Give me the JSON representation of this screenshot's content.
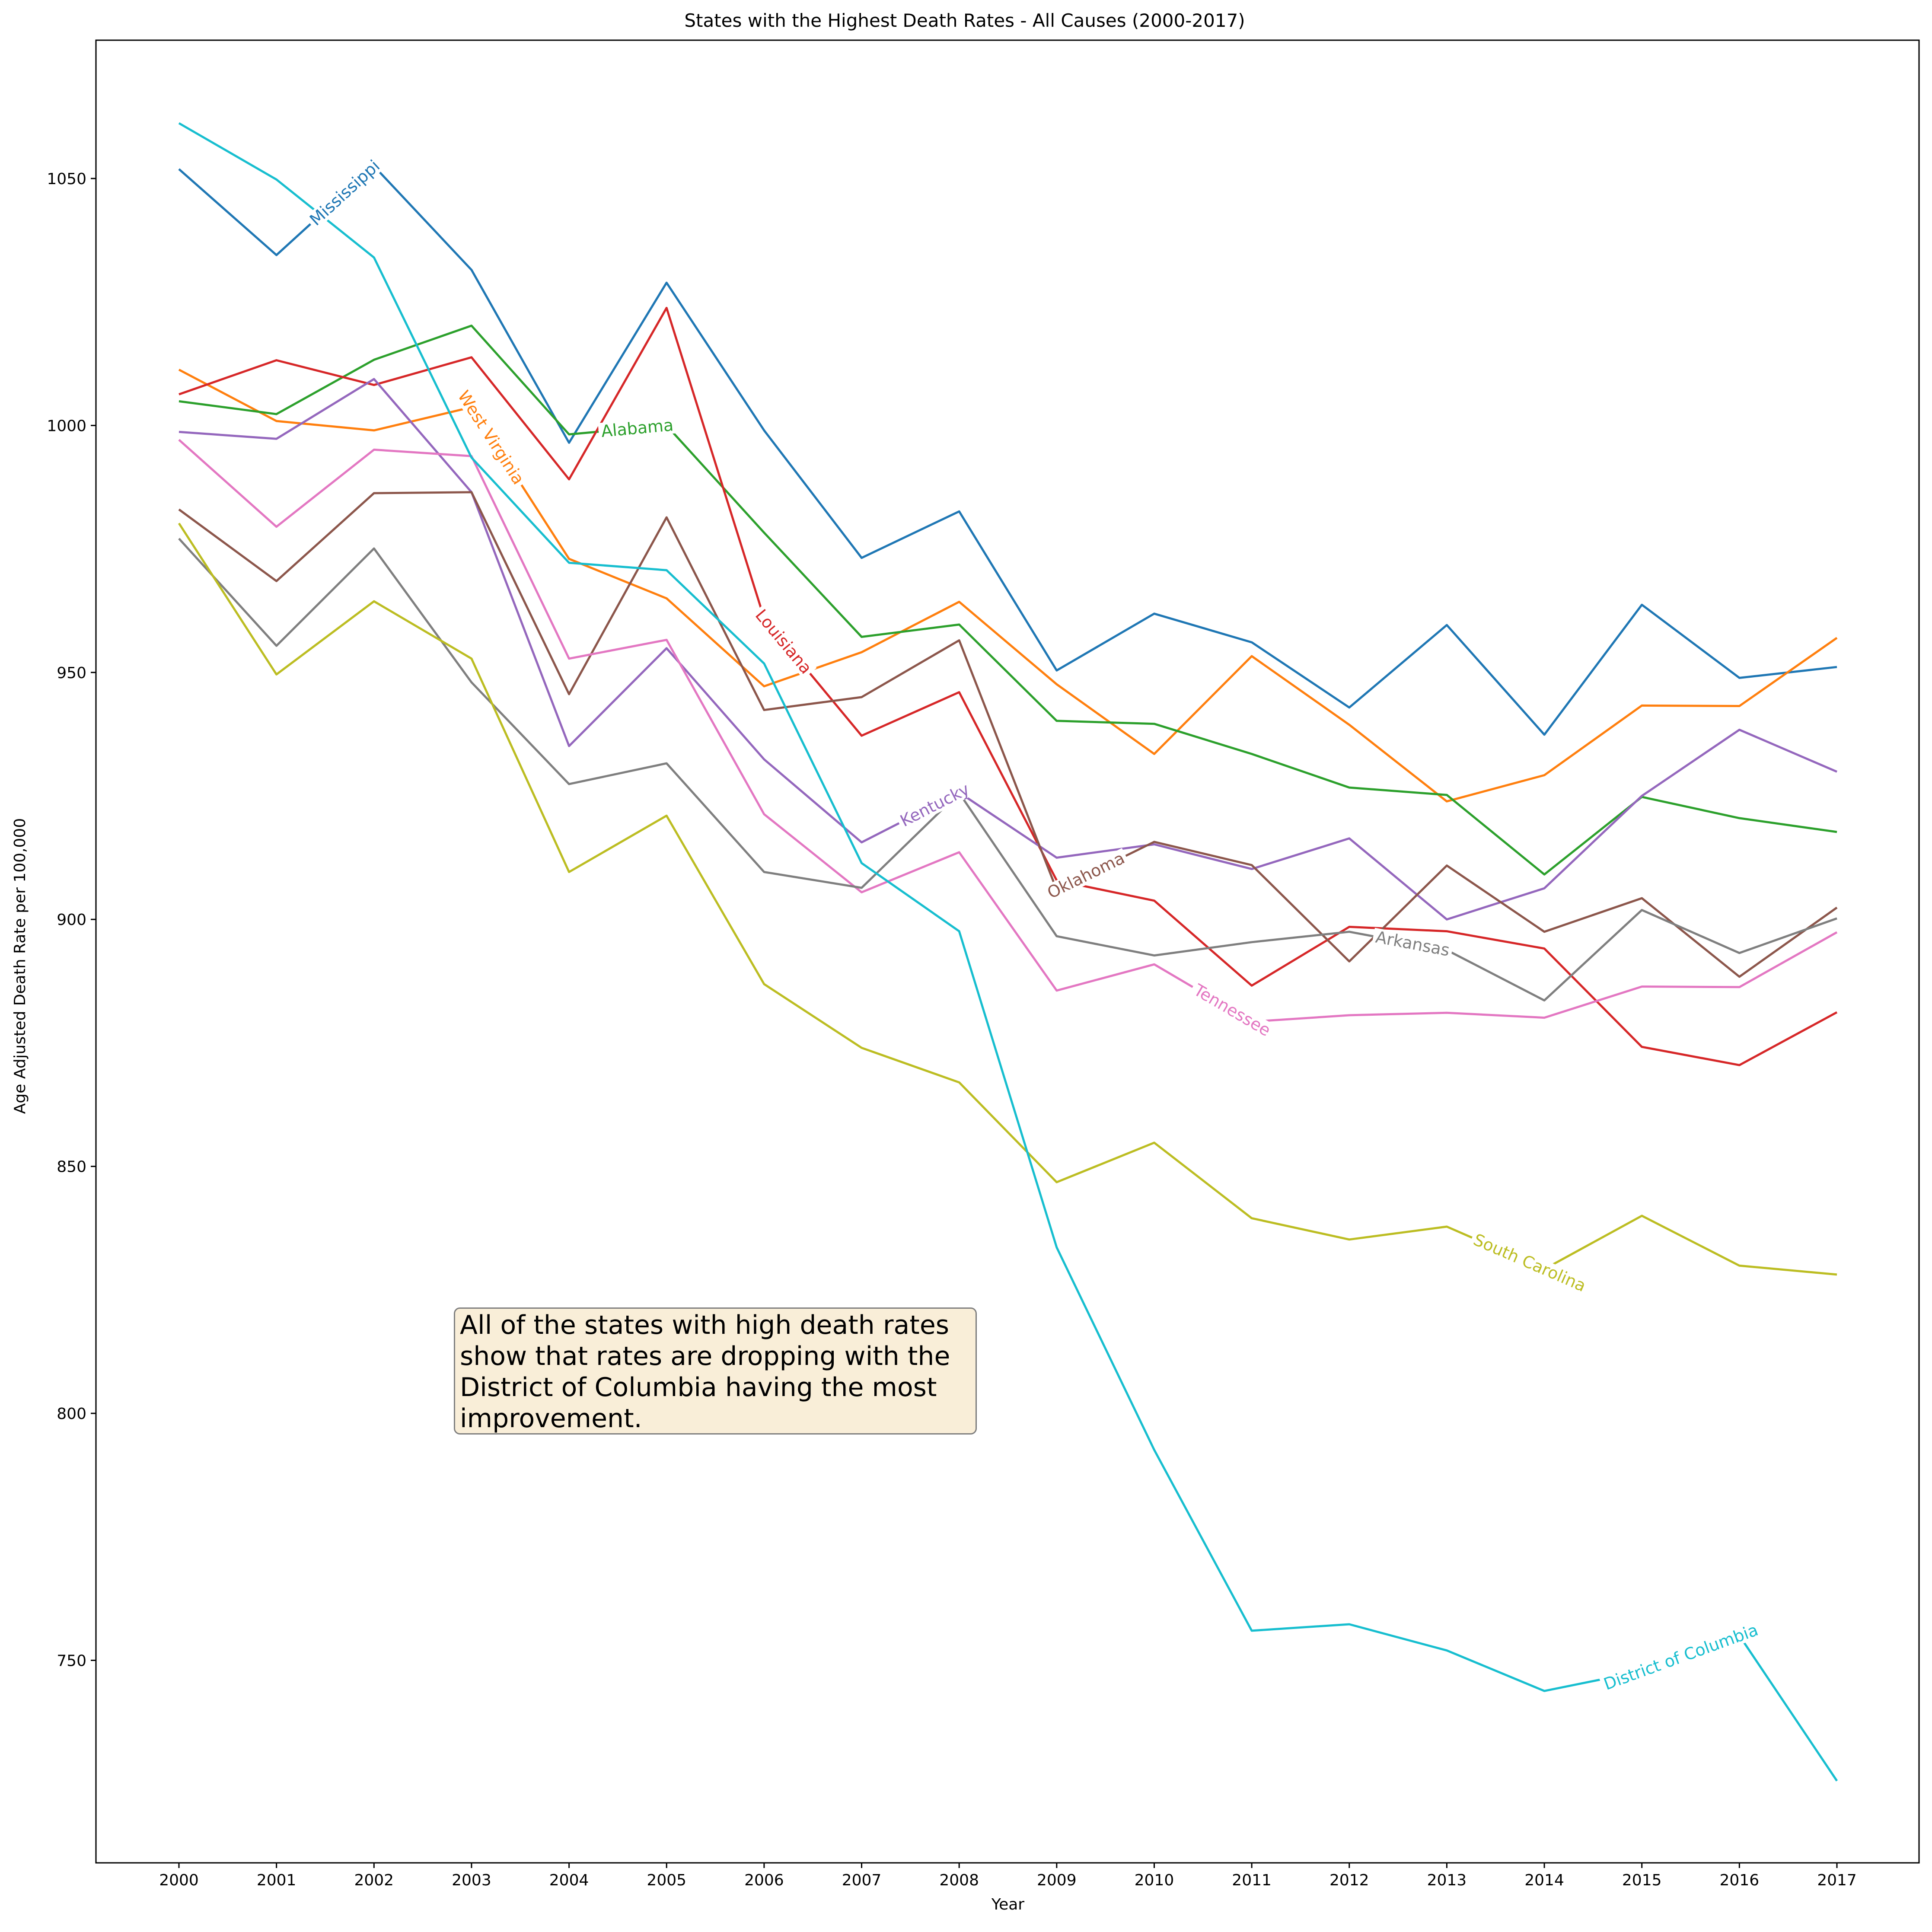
{
  "chart_data": {
    "type": "line",
    "title": "States with the Highest Death Rates - All Causes (2000-2017)",
    "xlabel": "Year",
    "ylabel": "Age Adjusted Death Rate per 100,000",
    "x": [
      2000,
      2001,
      2002,
      2003,
      2004,
      2005,
      2006,
      2007,
      2008,
      2009,
      2010,
      2011,
      2012,
      2013,
      2014,
      2015,
      2016,
      2017
    ],
    "xticks": [
      "2000",
      "2001",
      "2002",
      "2003",
      "2004",
      "2005",
      "2006",
      "2007",
      "2008",
      "2009",
      "2010",
      "2011",
      "2012",
      "2013",
      "2014",
      "2015",
      "2016",
      "2017"
    ],
    "ylim": [
      709,
      1078
    ],
    "yticks": [
      "750",
      "800",
      "850",
      "900",
      "950",
      "1000",
      "1050"
    ],
    "grid": false,
    "series": [
      {
        "name": "Mississippi",
        "color": "#1f77b4",
        "label_year": 2001.7,
        "values": [
          1051.9,
          1034.5,
          1052.5,
          1031.5,
          996.5,
          1028.9,
          999.0,
          973.2,
          982.6,
          950.4,
          961.9,
          956.1,
          942.9,
          959.6,
          937.4,
          963.7,
          948.9,
          951.1
        ]
      },
      {
        "name": "West Virginia",
        "color": "#ff7f0e",
        "label_year": 2003.2,
        "values": [
          1011.3,
          1000.9,
          999.0,
          1003.7,
          973.0,
          965.0,
          947.2,
          954.1,
          964.3,
          947.6,
          933.5,
          953.3,
          939.4,
          923.9,
          929.2,
          943.3,
          943.2,
          957.0
        ]
      },
      {
        "name": "Alabama",
        "color": "#2ca02c",
        "label_year": 2004.7,
        "values": [
          1004.9,
          1002.3,
          1013.3,
          1020.2,
          998.2,
          1000.0,
          978.3,
          957.2,
          959.7,
          940.2,
          939.6,
          933.5,
          926.7,
          925.2,
          909.1,
          924.8,
          920.5,
          917.7
        ]
      },
      {
        "name": "Louisiana",
        "color": "#d62728",
        "label_year": 2006.2,
        "values": [
          1006.3,
          1013.2,
          1008.2,
          1013.8,
          989.1,
          1023.8,
          961.0,
          937.2,
          946.0,
          907.9,
          903.8,
          886.6,
          898.5,
          897.6,
          894.1,
          874.2,
          870.5,
          881.2
        ]
      },
      {
        "name": "Kentucky",
        "color": "#9467bd",
        "label_year": 2007.75,
        "values": [
          998.7,
          997.3,
          1009.4,
          986.5,
          935.1,
          954.9,
          932.4,
          915.6,
          925.7,
          912.5,
          915.2,
          910.2,
          916.4,
          900.0,
          906.3,
          925.0,
          938.4,
          929.9
        ]
      },
      {
        "name": "Oklahoma",
        "color": "#8c564b",
        "label_year": 2009.3,
        "values": [
          983.0,
          968.5,
          986.3,
          986.5,
          945.6,
          981.4,
          942.4,
          945.0,
          956.5,
          906.0,
          915.7,
          911.0,
          891.5,
          910.9,
          897.5,
          904.3,
          888.4,
          902.4
        ]
      },
      {
        "name": "Tennessee",
        "color": "#e377c2",
        "label_year": 2010.8,
        "values": [
          997.1,
          979.5,
          995.1,
          993.8,
          952.8,
          956.6,
          921.3,
          905.5,
          913.6,
          885.6,
          890.9,
          879.3,
          880.6,
          881.1,
          880.1,
          886.4,
          886.3,
          897.4
        ]
      },
      {
        "name": "Arkansas",
        "color": "#7f7f7f",
        "label_year": 2012.65,
        "values": [
          977.1,
          955.4,
          975.1,
          948.0,
          927.4,
          931.6,
          909.6,
          906.4,
          925.6,
          896.6,
          892.7,
          895.4,
          897.5,
          893.8,
          883.6,
          901.9,
          893.2,
          900.2
        ]
      },
      {
        "name": "South Carolina",
        "color": "#bcbd22",
        "label_year": 2013.85,
        "values": [
          980.2,
          949.6,
          964.4,
          952.8,
          909.6,
          921.0,
          886.9,
          874.0,
          867.0,
          846.8,
          854.8,
          839.5,
          835.2,
          837.8,
          829.2,
          840.0,
          829.9,
          828.1
        ]
      },
      {
        "name": "District of Columbia",
        "color": "#17becf",
        "label_year": 2015.4,
        "values": [
          1061.2,
          1049.8,
          1034.0,
          993.5,
          972.2,
          970.7,
          951.8,
          911.4,
          897.6,
          833.6,
          792.6,
          756.0,
          757.3,
          752.0,
          743.8,
          747.8,
          755.0,
          725.6
        ]
      }
    ],
    "annotation": "All of the states with high death rates\nshow that rates are dropping with the\nDistrict of Columbia having the most\nimprovement."
  }
}
